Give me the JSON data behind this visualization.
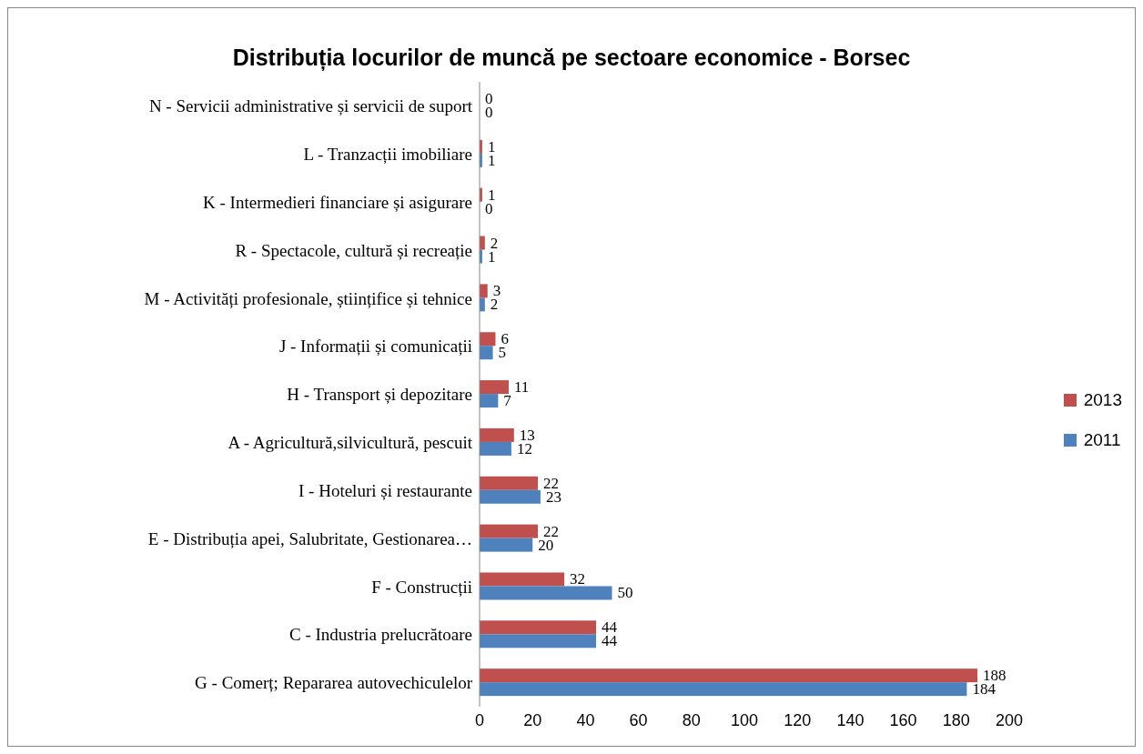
{
  "chart_data": {
    "type": "bar",
    "orientation": "horizontal",
    "title": "Distribuția locurilor de muncă pe sectoare economice - Borsec",
    "categories": [
      "N - Servicii administrative și servicii de suport",
      "L - Tranzacții imobiliare",
      "K - Intermedieri  financiare și asigurare",
      "R - Spectacole, cultură și recreație",
      "M - Activități profesionale, științifice și tehnice",
      "J - Informații și comunicații",
      "H - Transport și depozitare",
      "A - Agricultură,silvicultură, pescuit",
      "I - Hoteluri și restaurante",
      "E - Distribuția apei, Salubritate, Gestionarea…",
      "F - Construcții",
      "C - Industria prelucrătoare",
      "G - Comerț; Repararea autovechiculelor"
    ],
    "series": [
      {
        "name": "2013",
        "color": "#c0504d",
        "values": [
          0,
          1,
          1,
          2,
          3,
          6,
          11,
          13,
          22,
          22,
          32,
          44,
          188
        ]
      },
      {
        "name": "2011",
        "color": "#4f81bd",
        "values": [
          0,
          1,
          0,
          1,
          2,
          5,
          7,
          12,
          23,
          20,
          50,
          44,
          184
        ]
      }
    ],
    "xlim": [
      0,
      200
    ],
    "xticks": [
      0,
      20,
      40,
      60,
      80,
      100,
      120,
      140,
      160,
      180,
      200
    ],
    "grid": false,
    "legend": "right",
    "data_labels": true
  }
}
